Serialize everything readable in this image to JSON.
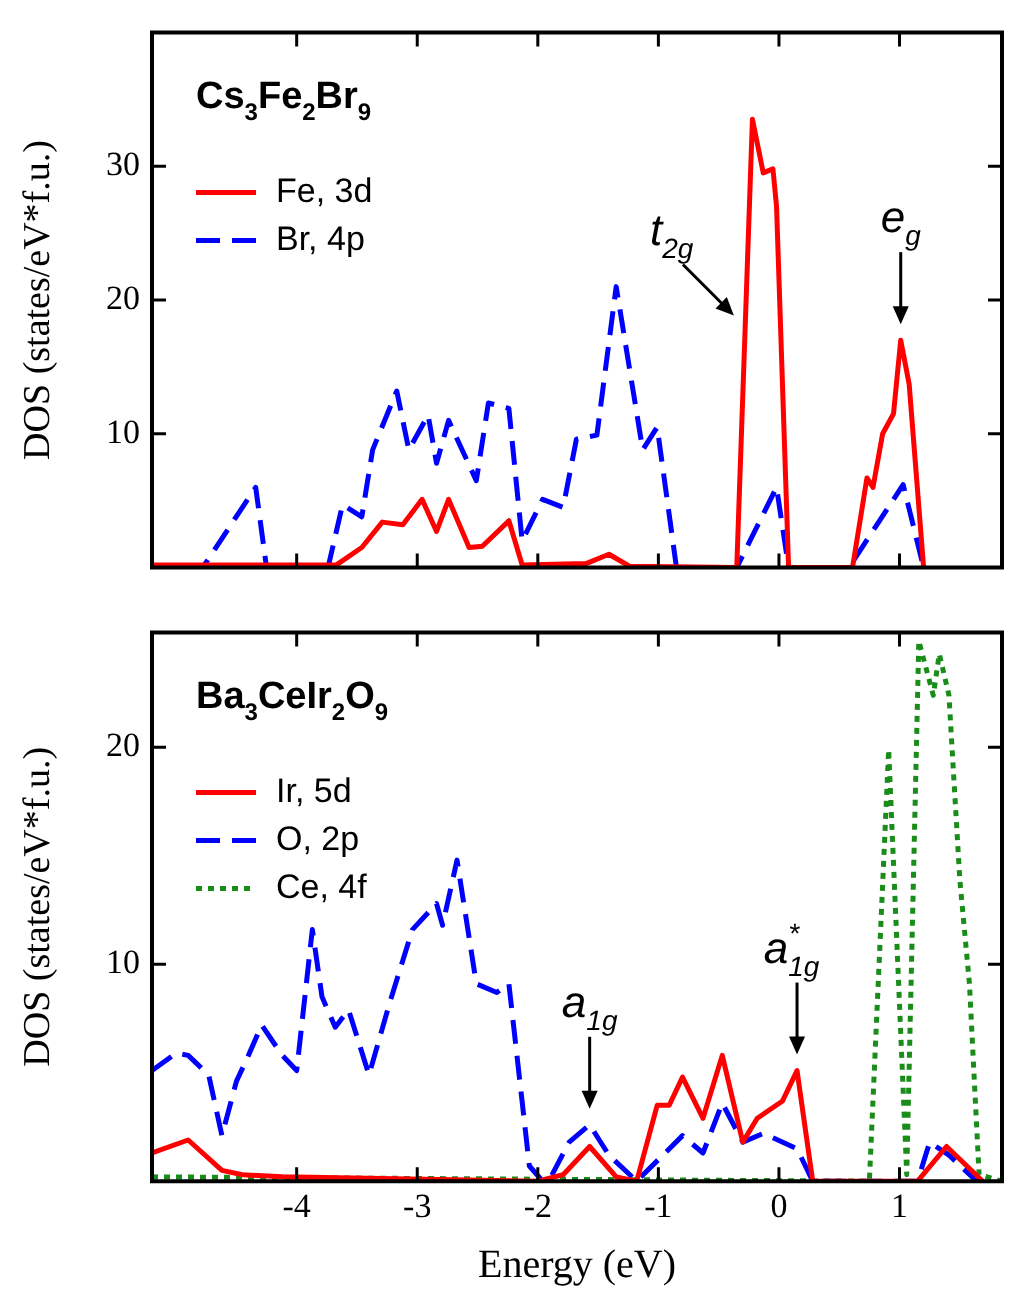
{
  "chart_data": [
    {
      "type": "line",
      "title": "Cs$_{3}$Fe$_{2}$Br$_{9}$",
      "ylabel": "DOS (states/eV*f.u.)",
      "xlim": [
        -5.2,
        1.85
      ],
      "xticks": [
        -4,
        -3,
        -2,
        -1,
        0,
        1
      ],
      "ylim": [
        0,
        40
      ],
      "yticks": [
        10,
        20,
        30
      ],
      "tick_labels": "y",
      "grid": false,
      "legend": "top left",
      "annotations": [
        {
          "text": "t$_{2g}$",
          "x": -0.28,
          "y": 18
        },
        {
          "text": "e$_{g}$",
          "x": 1.01,
          "y": 17
        }
      ],
      "series": [
        {
          "name": "Fe, 3d",
          "color": "#ff0000",
          "line_style": "solid",
          "x": [
            -5.2,
            -3.67,
            -3.46,
            -3.29,
            -3.12,
            -2.96,
            -2.84,
            -2.74,
            -2.57,
            -2.46,
            -2.24,
            -2.13,
            -1.6,
            -1.41,
            -1.24,
            -0.35,
            -0.28,
            -0.22,
            -0.13,
            -0.05,
            -0.02,
            0.08,
            0.61,
            0.73,
            0.78,
            0.86,
            0.95,
            1.01,
            1.08,
            1.2
          ],
          "values": [
            0.2,
            0.2,
            1.5,
            3.4,
            3.2,
            5.1,
            2.7,
            5.1,
            1.5,
            1.6,
            3.5,
            0.2,
            0.3,
            1.0,
            0.1,
            0,
            18,
            33.5,
            29.5,
            29.8,
            27,
            0,
            0,
            6.7,
            6,
            10,
            11.5,
            17,
            13.7,
            0
          ]
        },
        {
          "name": "Br, 4p",
          "color": "#0000ff",
          "line_style": "dashed",
          "x": [
            -5.2,
            -4.78,
            -4.34,
            -4.25,
            -3.74,
            -3.62,
            -3.46,
            -3.37,
            -3.17,
            -3.07,
            -2.91,
            -2.84,
            -2.74,
            -2.51,
            -2.41,
            -2.24,
            -2.13,
            -1.96,
            -1.79,
            -1.68,
            -1.51,
            -1.35,
            -1.13,
            -1.01,
            -0.85,
            -0.35,
            -0.02,
            0.08,
            0.58,
            1.03,
            1.2
          ],
          "values": [
            0,
            0,
            6,
            0,
            0,
            4.7,
            3.8,
            8.8,
            13.2,
            8.8,
            11.4,
            7.8,
            11,
            6.5,
            12.3,
            11.9,
            2,
            5.1,
            4.5,
            9.6,
            9.9,
            21,
            8.8,
            10.5,
            0,
            0,
            6,
            0,
            0,
            6.2,
            0
          ]
        }
      ]
    },
    {
      "type": "line",
      "title": "Ba$_{3}$CeIr$_{2}$O$_{9}$",
      "xlabel": "Energy (eV)",
      "ylabel": "DOS (states/eV*f.u.)",
      "xlim": [
        -5.2,
        1.85
      ],
      "xticks": [
        -4,
        -3,
        -2,
        -1,
        0,
        1
      ],
      "ylim": [
        0,
        25.3
      ],
      "yticks": [
        10,
        20
      ],
      "grid": false,
      "legend": "top left",
      "annotations": [
        {
          "text": "a$_{1g}$",
          "x": -1.57,
          "y": 2.6
        },
        {
          "text": "a$^{*}$$_{1g}$",
          "x": 0.15,
          "y": 5.1
        }
      ],
      "series": [
        {
          "name": "Ir, 5d",
          "color": "#ff0000",
          "line_style": "solid",
          "x": [
            -5.2,
            -4.9,
            -4.62,
            -4.45,
            -4.12,
            -2.0,
            -1.79,
            -1.57,
            -1.35,
            -1.18,
            -1.01,
            -0.91,
            -0.8,
            -0.63,
            -0.47,
            -0.3,
            -0.18,
            0.03,
            0.15,
            0.28,
            1.15,
            1.39,
            1.69
          ],
          "values": [
            1.3,
            1.9,
            0.5,
            0.3,
            0.2,
            0,
            0.3,
            1.6,
            0.2,
            0,
            3.5,
            3.5,
            4.8,
            2.9,
            5.8,
            1.8,
            2.9,
            3.7,
            5.1,
            0,
            0,
            1.6,
            0
          ]
        },
        {
          "name": "O, 2p",
          "color": "#0000ff",
          "line_style": "dashed",
          "x": [
            -5.2,
            -5.0,
            -4.9,
            -4.73,
            -4.62,
            -4.5,
            -4.4,
            -4.29,
            -4.12,
            -4.0,
            -3.87,
            -3.79,
            -3.68,
            -3.57,
            -3.4,
            -3.23,
            -3.04,
            -2.84,
            -2.79,
            -2.67,
            -2.51,
            -2.34,
            -2.24,
            -2.07,
            -1.96,
            -1.91,
            -1.74,
            -1.57,
            -1.41,
            -1.18,
            -0.8,
            -0.63,
            -0.47,
            -0.3,
            -0.13,
            0.15,
            0.28,
            1.15,
            1.25,
            1.41,
            1.64
          ],
          "values": [
            5.1,
            5.9,
            5.8,
            4.9,
            2.1,
            4.6,
            5.8,
            7.2,
            5.8,
            5.1,
            11.6,
            8.5,
            7.1,
            7.9,
            4.9,
            8.2,
            11.6,
            12.8,
            11.8,
            14.8,
            9.1,
            8.7,
            9.1,
            0.7,
            0,
            0,
            1.8,
            2.6,
            1.2,
            0,
            2.1,
            1.3,
            3.6,
            1.8,
            2.2,
            1.5,
            0,
            0,
            1.8,
            1.2,
            0
          ]
        },
        {
          "name": "Ce, 4f",
          "color": "#1a8c1a",
          "line_style": "dotted",
          "x": [
            -5.2,
            0.75,
            0.91,
            1.06,
            1.16,
            1.28,
            1.33,
            1.41,
            1.5,
            1.58,
            1.66,
            1.85
          ],
          "values": [
            0.2,
            0,
            19.9,
            0.3,
            24.9,
            22.4,
            24.3,
            22.4,
            13.9,
            9.1,
            0.3,
            0
          ]
        }
      ]
    }
  ]
}
